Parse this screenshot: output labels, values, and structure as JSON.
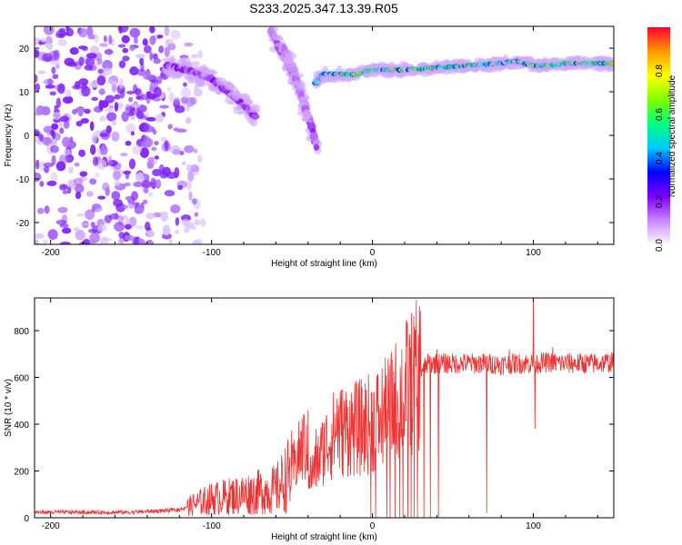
{
  "title": "S233.2025.347.13.39.R05",
  "colors": {
    "plot_line": "#ee3333",
    "axis": "#000000",
    "spectrogram_low": "#e6d3ff",
    "spectrogram_mid": "#7f1fff",
    "spectrogram_high": "#ff0033",
    "background": "#ffffff"
  },
  "chart_data": [
    {
      "type": "heatmap",
      "name": "spectrogram",
      "xlabel": "Height of straight line (km)",
      "ylabel": "Frequency (Hz)",
      "xlim": [
        -210,
        150
      ],
      "ylim": [
        -25,
        25
      ],
      "x_ticks": [
        -200,
        -100,
        0,
        100
      ],
      "y_ticks": [
        -20,
        -10,
        0,
        10,
        20
      ],
      "colorbar": {
        "label": "Normalized spectral amplitude",
        "range": [
          0,
          1
        ],
        "ticks": [
          0.0,
          0.2,
          0.4,
          0.6,
          0.8
        ],
        "tick_labels": [
          "0.0",
          "0.2",
          "0.4",
          "0.6",
          "0.8"
        ],
        "stops": [
          "#ffffff",
          "#cc88ff",
          "#7f00ff",
          "#0000ff",
          "#00c8ff",
          "#00ff80",
          "#80ff00",
          "#ffff00",
          "#ff9900",
          "#ff0033"
        ]
      },
      "features": [
        {
          "name": "noise-cloud",
          "x_range": [
            -210,
            -105
          ],
          "y_range": [
            -25,
            25
          ],
          "amplitude": 0.15
        },
        {
          "name": "descending-track-1",
          "points": [
            [
              -128,
              16
            ],
            [
              -115,
              15
            ],
            [
              -100,
              13
            ],
            [
              -90,
              10
            ],
            [
              -80,
              7
            ],
            [
              -72,
              4
            ]
          ],
          "amplitude": 0.35
        },
        {
          "name": "descending-track-2",
          "points": [
            [
              -63,
              24
            ],
            [
              -55,
              18
            ],
            [
              -48,
              13
            ],
            [
              -42,
              7
            ],
            [
              -37,
              1
            ],
            [
              -34,
              -4
            ]
          ],
          "amplitude": 0.3
        },
        {
          "name": "descending-track-3",
          "points": [
            [
              -55,
              20
            ],
            [
              -50,
              16
            ],
            [
              -45,
              10
            ],
            [
              -40,
              4
            ]
          ],
          "amplitude": 0.22
        },
        {
          "name": "main-tone",
          "points": [
            [
              -35,
              12
            ],
            [
              -30,
              14
            ],
            [
              -20,
              14
            ],
            [
              -10,
              14
            ],
            [
              0,
              15
            ],
            [
              20,
              15
            ],
            [
              40,
              15.5
            ],
            [
              60,
              16
            ],
            [
              80,
              16.5
            ],
            [
              90,
              17
            ],
            [
              100,
              16
            ],
            [
              110,
              16
            ],
            [
              120,
              16.5
            ],
            [
              150,
              16.5
            ]
          ],
          "amplitude": 0.9
        }
      ]
    },
    {
      "type": "line",
      "name": "snr",
      "xlabel": "Height of straight line (km)",
      "ylabel": "SNR (10 * v/v)",
      "xlim": [
        -210,
        150
      ],
      "ylim": [
        0,
        940
      ],
      "x_ticks": [
        -200,
        -100,
        0,
        100
      ],
      "y_ticks": [
        0,
        200,
        400,
        600,
        800
      ],
      "series": [
        {
          "name": "SNR",
          "color": "#ee3333",
          "envelope": {
            "x": [
              -210,
              -150,
              -120,
              -110,
              -100,
              -90,
              -80,
              -70,
              -60,
              -50,
              -45,
              -42,
              -40,
              -38,
              -35,
              -30,
              -25,
              -20,
              -15,
              -10,
              -5,
              0,
              5,
              10,
              15,
              20,
              25,
              30,
              35,
              40,
              50,
              60,
              70,
              80,
              90,
              100,
              110,
              120,
              130,
              140,
              150
            ],
            "y": [
              20,
              20,
              30,
              60,
              80,
              90,
              100,
              110,
              120,
              200,
              280,
              320,
              200,
              180,
              230,
              300,
              350,
              370,
              380,
              380,
              390,
              410,
              430,
              450,
              500,
              550,
              580,
              630,
              660,
              660,
              660,
              660,
              660,
              655,
              660,
              660,
              665,
              660,
              660,
              660,
              665
            ]
          },
          "spikes_up": [
            [
              -40,
              460
            ],
            [
              -35,
              380
            ],
            [
              -22,
              510
            ],
            [
              -2,
              350
            ],
            [
              3,
              450
            ],
            [
              5,
              470
            ],
            [
              10,
              520
            ],
            [
              40,
              720
            ],
            [
              85,
              720
            ],
            [
              100,
              940
            ],
            [
              112,
              730
            ]
          ],
          "dips": [
            [
              -1,
              0
            ],
            [
              2,
              0
            ],
            [
              9,
              0
            ],
            [
              11,
              0
            ],
            [
              14,
              0
            ],
            [
              17,
              0
            ],
            [
              19,
              0
            ],
            [
              22,
              0
            ],
            [
              24,
              0
            ],
            [
              26,
              0
            ],
            [
              28,
              0
            ],
            [
              32,
              0
            ],
            [
              36,
              0
            ],
            [
              41,
              0
            ],
            [
              71,
              20
            ],
            [
              101,
              380
            ]
          ]
        }
      ]
    }
  ]
}
